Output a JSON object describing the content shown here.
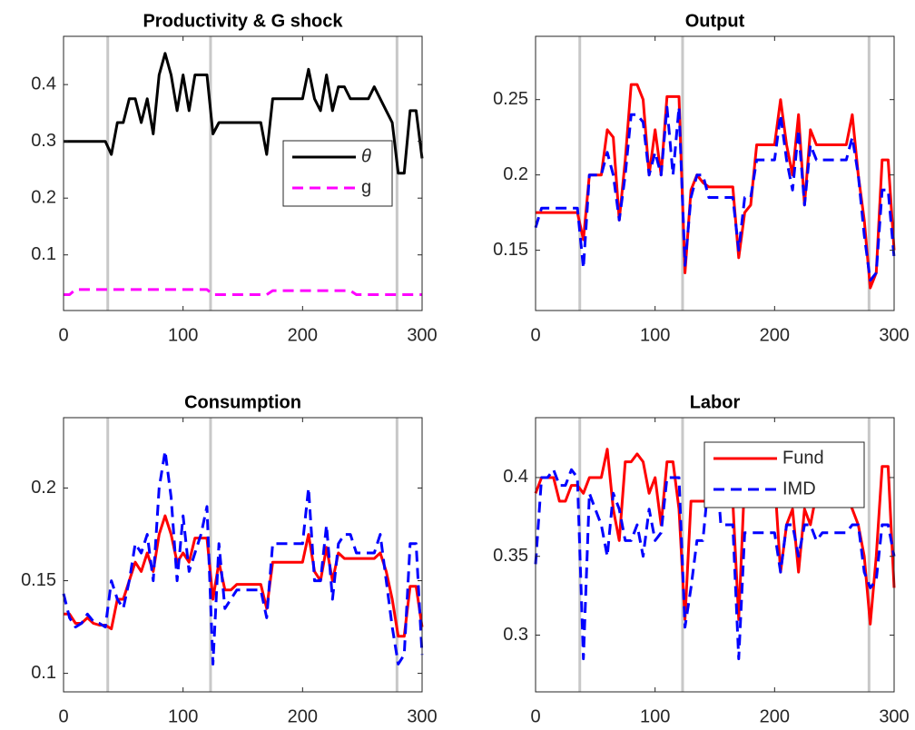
{
  "chart_data": [
    {
      "type": "line",
      "title": "Productivity & G shock",
      "x": [
        0,
        5,
        10,
        15,
        20,
        25,
        30,
        35,
        40,
        45,
        50,
        55,
        60,
        65,
        70,
        75,
        80,
        85,
        90,
        95,
        100,
        105,
        110,
        115,
        120,
        125,
        130,
        135,
        140,
        145,
        150,
        155,
        160,
        165,
        170,
        175,
        180,
        185,
        190,
        195,
        200,
        205,
        210,
        215,
        220,
        225,
        230,
        235,
        240,
        245,
        250,
        255,
        260,
        265,
        270,
        275,
        280,
        285,
        290,
        295,
        300
      ],
      "series": [
        {
          "name": "θ",
          "color": "#000000",
          "dashed": false,
          "values": [
            0.3,
            0.3,
            0.3,
            0.3,
            0.3,
            0.3,
            0.3,
            0.3,
            0.277,
            0.333,
            0.333,
            0.375,
            0.375,
            0.333,
            0.375,
            0.313,
            0.417,
            0.455,
            0.417,
            0.354,
            0.417,
            0.354,
            0.417,
            0.417,
            0.417,
            0.313,
            0.333,
            0.333,
            0.333,
            0.333,
            0.333,
            0.333,
            0.333,
            0.333,
            0.277,
            0.375,
            0.375,
            0.375,
            0.375,
            0.375,
            0.375,
            0.427,
            0.375,
            0.354,
            0.417,
            0.354,
            0.396,
            0.396,
            0.375,
            0.375,
            0.375,
            0.375,
            0.396,
            0.375,
            0.354,
            0.333,
            0.244,
            0.244,
            0.354,
            0.354,
            0.27
          ]
        },
        {
          "name": "g",
          "color": "#ff00ff",
          "dashed": true,
          "values": [
            0.03,
            0.03,
            0.039,
            0.039,
            0.039,
            0.039,
            0.039,
            0.039,
            0.039,
            0.039,
            0.039,
            0.039,
            0.039,
            0.039,
            0.039,
            0.039,
            0.039,
            0.039,
            0.039,
            0.039,
            0.039,
            0.039,
            0.039,
            0.039,
            0.039,
            0.03,
            0.03,
            0.03,
            0.03,
            0.03,
            0.03,
            0.03,
            0.03,
            0.03,
            0.03,
            0.037,
            0.037,
            0.037,
            0.037,
            0.037,
            0.037,
            0.037,
            0.037,
            0.037,
            0.037,
            0.037,
            0.037,
            0.037,
            0.037,
            0.03,
            0.03,
            0.03,
            0.03,
            0.03,
            0.03,
            0.03,
            0.03,
            0.03,
            0.03,
            0.03,
            0.03
          ]
        }
      ],
      "xlim": [
        0,
        300
      ],
      "xticks": [
        0,
        100,
        200,
        300
      ],
      "ylim": [
        0.002,
        0.485
      ],
      "yticks": [
        0.1,
        0.2,
        0.3,
        0.4
      ],
      "vlines": [
        37,
        123,
        279
      ],
      "legend": "east"
    },
    {
      "type": "line",
      "title": "Output",
      "x": [
        0,
        5,
        10,
        15,
        20,
        25,
        30,
        35,
        40,
        45,
        50,
        55,
        60,
        65,
        70,
        75,
        80,
        85,
        90,
        95,
        100,
        105,
        110,
        115,
        120,
        125,
        130,
        135,
        140,
        145,
        150,
        155,
        160,
        165,
        170,
        175,
        180,
        185,
        190,
        195,
        200,
        205,
        210,
        215,
        220,
        225,
        230,
        235,
        240,
        245,
        250,
        255,
        260,
        265,
        270,
        275,
        280,
        285,
        290,
        295,
        300
      ],
      "series": [
        {
          "name": "Fund",
          "color": "#ff0000",
          "dashed": false,
          "values": [
            0.175,
            0.175,
            0.175,
            0.175,
            0.175,
            0.175,
            0.175,
            0.175,
            0.157,
            0.2,
            0.2,
            0.2,
            0.23,
            0.225,
            0.17,
            0.21,
            0.26,
            0.26,
            0.25,
            0.2,
            0.23,
            0.2,
            0.252,
            0.252,
            0.252,
            0.135,
            0.19,
            0.2,
            0.195,
            0.192,
            0.192,
            0.192,
            0.192,
            0.192,
            0.145,
            0.175,
            0.18,
            0.22,
            0.22,
            0.22,
            0.22,
            0.25,
            0.22,
            0.2,
            0.24,
            0.18,
            0.23,
            0.22,
            0.22,
            0.22,
            0.22,
            0.22,
            0.22,
            0.24,
            0.2,
            0.17,
            0.125,
            0.135,
            0.21,
            0.21,
            0.15
          ]
        },
        {
          "name": "IMD",
          "color": "#0000ff",
          "dashed": true,
          "values": [
            0.165,
            0.178,
            0.178,
            0.178,
            0.178,
            0.178,
            0.178,
            0.178,
            0.138,
            0.2,
            0.2,
            0.2,
            0.215,
            0.2,
            0.17,
            0.2,
            0.24,
            0.24,
            0.235,
            0.2,
            0.215,
            0.2,
            0.245,
            0.2,
            0.245,
            0.14,
            0.185,
            0.2,
            0.2,
            0.185,
            0.185,
            0.185,
            0.185,
            0.185,
            0.15,
            0.185,
            0.185,
            0.21,
            0.21,
            0.21,
            0.21,
            0.24,
            0.21,
            0.19,
            0.23,
            0.18,
            0.22,
            0.21,
            0.21,
            0.21,
            0.21,
            0.21,
            0.21,
            0.225,
            0.2,
            0.16,
            0.13,
            0.135,
            0.19,
            0.19,
            0.145
          ]
        }
      ],
      "xlim": [
        0,
        300
      ],
      "xticks": [
        0,
        100,
        200,
        300
      ],
      "ylim": [
        0.11,
        0.292
      ],
      "yticks": [
        0.15,
        0.2,
        0.25
      ],
      "vlines": [
        37,
        123,
        279
      ]
    },
    {
      "type": "line",
      "title": "Consumption",
      "x": [
        0,
        5,
        10,
        15,
        20,
        25,
        30,
        35,
        40,
        45,
        50,
        55,
        60,
        65,
        70,
        75,
        80,
        85,
        90,
        95,
        100,
        105,
        110,
        115,
        120,
        125,
        130,
        135,
        140,
        145,
        150,
        155,
        160,
        165,
        170,
        175,
        180,
        185,
        190,
        195,
        200,
        205,
        210,
        215,
        220,
        225,
        230,
        235,
        240,
        245,
        250,
        255,
        260,
        265,
        270,
        275,
        280,
        285,
        290,
        295,
        300
      ],
      "series": [
        {
          "name": "Fund",
          "color": "#ff0000",
          "dashed": false,
          "values": [
            0.132,
            0.132,
            0.127,
            0.127,
            0.13,
            0.127,
            0.126,
            0.126,
            0.124,
            0.14,
            0.14,
            0.15,
            0.16,
            0.155,
            0.165,
            0.155,
            0.175,
            0.185,
            0.175,
            0.16,
            0.165,
            0.16,
            0.173,
            0.173,
            0.173,
            0.14,
            0.16,
            0.145,
            0.145,
            0.148,
            0.148,
            0.148,
            0.148,
            0.148,
            0.135,
            0.16,
            0.16,
            0.16,
            0.16,
            0.16,
            0.16,
            0.175,
            0.155,
            0.15,
            0.168,
            0.15,
            0.165,
            0.162,
            0.162,
            0.162,
            0.162,
            0.162,
            0.162,
            0.165,
            0.155,
            0.14,
            0.12,
            0.12,
            0.147,
            0.147,
            0.125
          ]
        },
        {
          "name": "IMD",
          "color": "#0000ff",
          "dashed": true,
          "values": [
            0.143,
            0.13,
            0.125,
            0.127,
            0.132,
            0.128,
            0.127,
            0.125,
            0.15,
            0.14,
            0.135,
            0.15,
            0.17,
            0.165,
            0.175,
            0.15,
            0.2,
            0.22,
            0.195,
            0.15,
            0.185,
            0.155,
            0.165,
            0.175,
            0.19,
            0.105,
            0.17,
            0.135,
            0.14,
            0.145,
            0.145,
            0.145,
            0.145,
            0.145,
            0.13,
            0.17,
            0.17,
            0.17,
            0.17,
            0.17,
            0.17,
            0.2,
            0.15,
            0.15,
            0.18,
            0.14,
            0.17,
            0.175,
            0.175,
            0.165,
            0.165,
            0.165,
            0.165,
            0.175,
            0.15,
            0.125,
            0.105,
            0.11,
            0.17,
            0.17,
            0.11
          ]
        }
      ],
      "xlim": [
        0,
        300
      ],
      "xticks": [
        0,
        100,
        200,
        300
      ],
      "ylim": [
        0.09,
        0.238
      ],
      "yticks": [
        0.1,
        0.15,
        0.2
      ],
      "vlines": [
        37,
        123,
        279
      ]
    },
    {
      "type": "line",
      "title": "Labor",
      "x": [
        0,
        5,
        10,
        15,
        20,
        25,
        30,
        35,
        40,
        45,
        50,
        55,
        60,
        65,
        70,
        75,
        80,
        85,
        90,
        95,
        100,
        105,
        110,
        115,
        120,
        125,
        130,
        135,
        140,
        145,
        150,
        155,
        160,
        165,
        170,
        175,
        180,
        185,
        190,
        195,
        200,
        205,
        210,
        215,
        220,
        225,
        230,
        235,
        240,
        245,
        250,
        255,
        260,
        265,
        270,
        275,
        280,
        285,
        290,
        295,
        300
      ],
      "series": [
        {
          "name": "Fund",
          "color": "#ff0000",
          "dashed": false,
          "values": [
            0.39,
            0.4,
            0.4,
            0.4,
            0.385,
            0.385,
            0.395,
            0.395,
            0.39,
            0.4,
            0.4,
            0.4,
            0.418,
            0.38,
            0.36,
            0.41,
            0.41,
            0.415,
            0.41,
            0.39,
            0.4,
            0.37,
            0.41,
            0.41,
            0.38,
            0.31,
            0.385,
            0.385,
            0.385,
            0.385,
            0.385,
            0.385,
            0.385,
            0.385,
            0.31,
            0.4,
            0.4,
            0.4,
            0.4,
            0.4,
            0.4,
            0.34,
            0.37,
            0.38,
            0.34,
            0.38,
            0.37,
            0.39,
            0.39,
            0.39,
            0.39,
            0.39,
            0.39,
            0.38,
            0.37,
            0.35,
            0.307,
            0.35,
            0.407,
            0.407,
            0.33
          ]
        },
        {
          "name": "IMD",
          "color": "#0000ff",
          "dashed": true,
          "values": [
            0.345,
            0.4,
            0.4,
            0.405,
            0.395,
            0.395,
            0.405,
            0.4,
            0.285,
            0.39,
            0.38,
            0.37,
            0.35,
            0.39,
            0.38,
            0.36,
            0.36,
            0.37,
            0.35,
            0.38,
            0.36,
            0.365,
            0.4,
            0.4,
            0.4,
            0.305,
            0.33,
            0.36,
            0.36,
            0.4,
            0.42,
            0.37,
            0.37,
            0.37,
            0.285,
            0.365,
            0.365,
            0.365,
            0.365,
            0.365,
            0.365,
            0.34,
            0.37,
            0.37,
            0.35,
            0.37,
            0.37,
            0.36,
            0.365,
            0.365,
            0.365,
            0.365,
            0.365,
            0.37,
            0.37,
            0.34,
            0.33,
            0.335,
            0.37,
            0.37,
            0.35
          ]
        }
      ],
      "xlim": [
        0,
        300
      ],
      "xticks": [
        0,
        100,
        200,
        300
      ],
      "ylim": [
        0.264,
        0.438
      ],
      "yticks": [
        0.3,
        0.35,
        0.4
      ],
      "vlines": [
        37,
        123,
        279
      ],
      "legend": "northeast"
    }
  ]
}
